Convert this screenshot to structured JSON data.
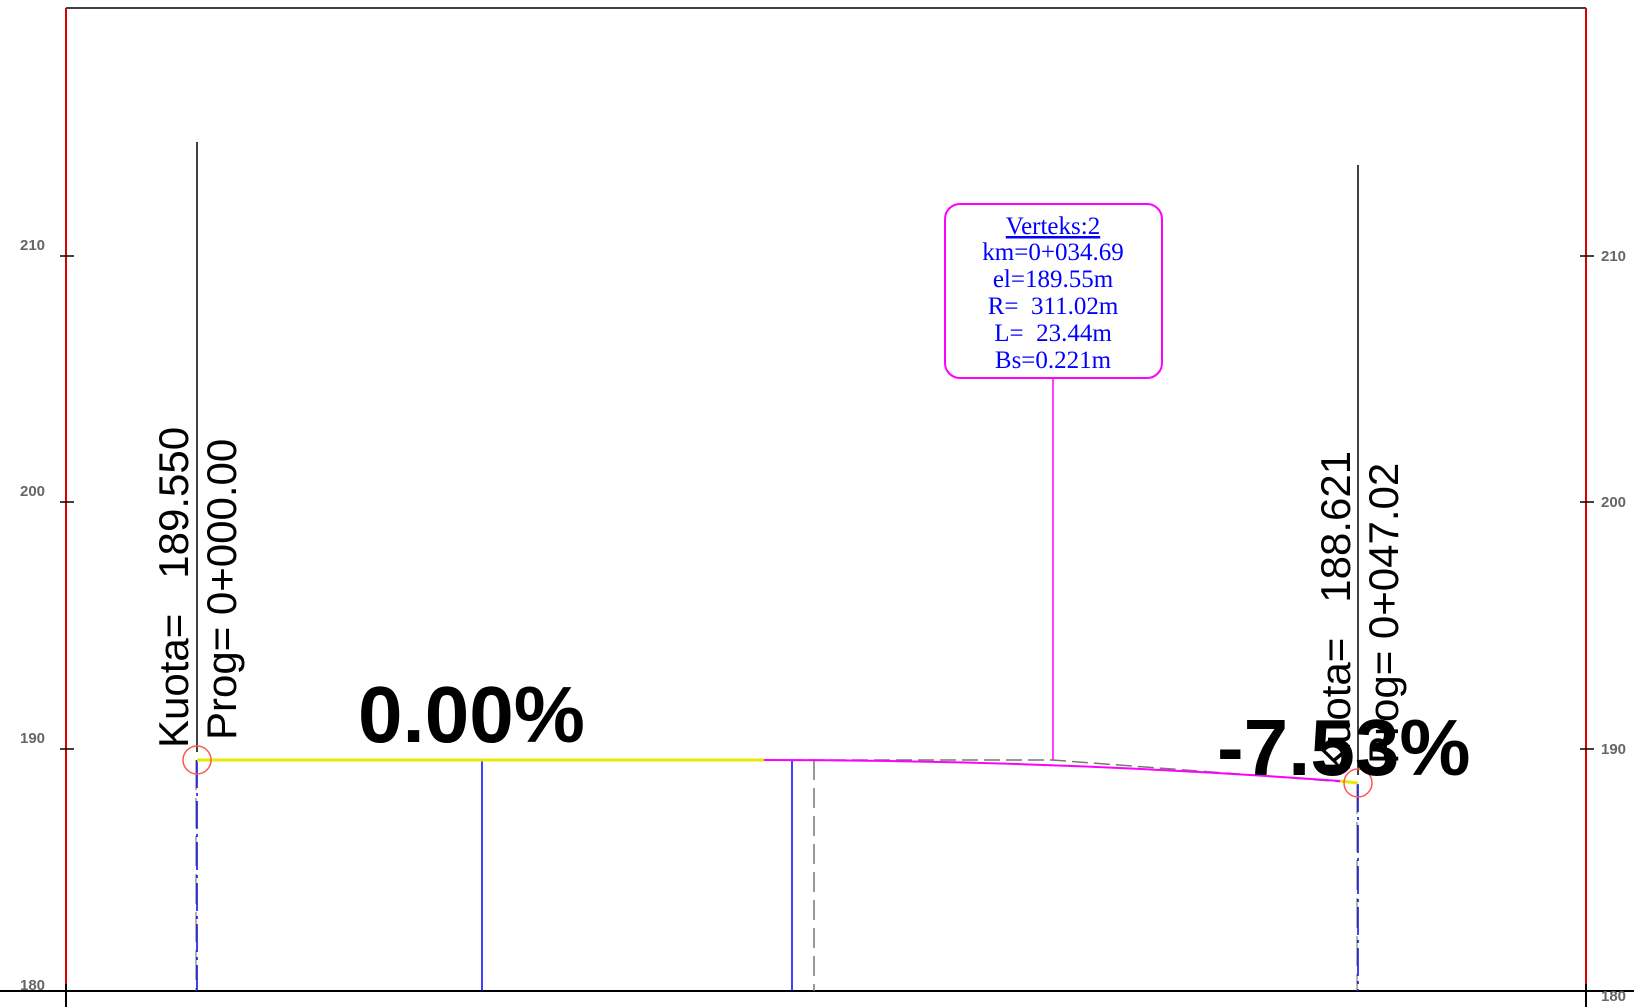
{
  "profile": {
    "elevation_axis": {
      "ticks": [
        {
          "value": 210,
          "label": "210"
        },
        {
          "value": 200,
          "label": "200"
        },
        {
          "value": 190,
          "label": "190"
        },
        {
          "value": 180,
          "label": "180"
        }
      ]
    },
    "start_point": {
      "kuota_text": "Kuota=   189.550",
      "prog_text": "Prog= 0+000.00",
      "chainage_m": 0.0,
      "elevation_m": 189.55
    },
    "end_point": {
      "kuota_text": "Kuota=   188.621",
      "prog_text": "Prog= 0+047.02",
      "chainage_m": 47.02,
      "elevation_m": 188.621
    },
    "grades": [
      {
        "label": "0.00%"
      },
      {
        "label": "-7.53%"
      }
    ],
    "vertex": {
      "title": "Verteks:2",
      "lines": [
        "km=0+034.69",
        "el=189.55m",
        "R=  311.02m",
        "L=  23.44m",
        "Bs=0.221m"
      ],
      "chainage_m": 34.69,
      "elevation_m": 189.55
    },
    "colors": {
      "frame": "#dd0000",
      "grade_line": "#e8e800",
      "curve": "#ff00ff",
      "station_line": "#0000ff",
      "label_box": "#ff00ff",
      "label_text": "#0000ff"
    }
  }
}
